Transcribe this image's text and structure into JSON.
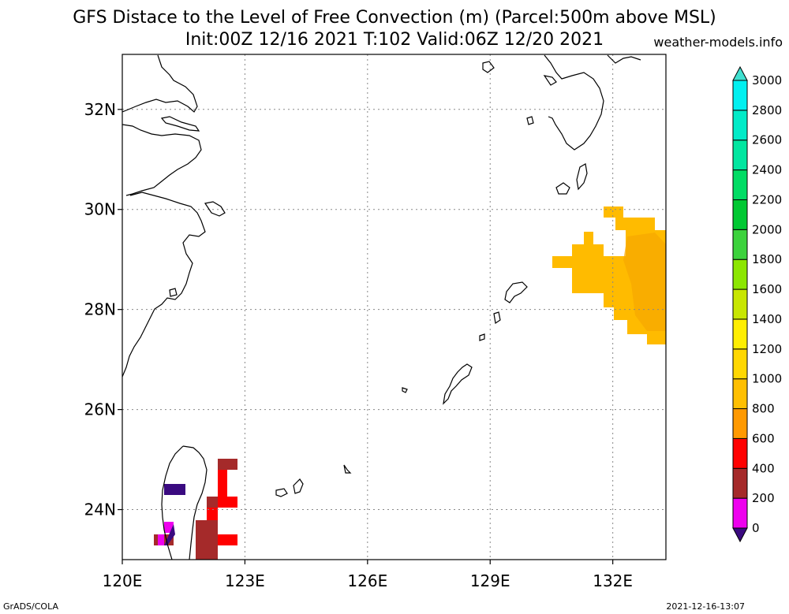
{
  "title": {
    "line1": "GFS Distace to the Level of Free Convection (m) (Parcel:500m above MSL)",
    "line2": "Init:00Z 12/16 2021 T:102 Valid:06Z 12/20 2021"
  },
  "site": "weather-models.info",
  "footer": {
    "left": "GrADS/COLA",
    "right": "2021-12-16-13:07"
  },
  "map": {
    "lon_range": [
      120,
      133.3
    ],
    "lat_range": [
      23,
      33.1
    ],
    "x_ticks": [
      {
        "value": 120,
        "label": "120E"
      },
      {
        "value": 123,
        "label": "123E"
      },
      {
        "value": 126,
        "label": "126E"
      },
      {
        "value": 129,
        "label": "129E"
      },
      {
        "value": 132,
        "label": "132E"
      }
    ],
    "y_ticks": [
      {
        "value": 24,
        "label": "24N"
      },
      {
        "value": 26,
        "label": "26N"
      },
      {
        "value": 28,
        "label": "28N"
      },
      {
        "value": 30,
        "label": "30N"
      },
      {
        "value": 32,
        "label": "32N"
      }
    ],
    "grid": true
  },
  "colorbar": {
    "levels": [
      "0",
      "200",
      "400",
      "600",
      "800",
      "1000",
      "1200",
      "1400",
      "1600",
      "1800",
      "2000",
      "2200",
      "2400",
      "2600",
      "2800",
      "3000"
    ],
    "colors": [
      "#3a0a80",
      "#ee00ee",
      "#a52a2a",
      "#ff0000",
      "#ff9900",
      "#ffbf00",
      "#ffd700",
      "#ffee00",
      "#c8e600",
      "#8ce600",
      "#3cd23c",
      "#00c832",
      "#00dc64",
      "#00e6a0",
      "#00ebc8",
      "#00f0f0",
      "#40e0d0"
    ]
  }
}
